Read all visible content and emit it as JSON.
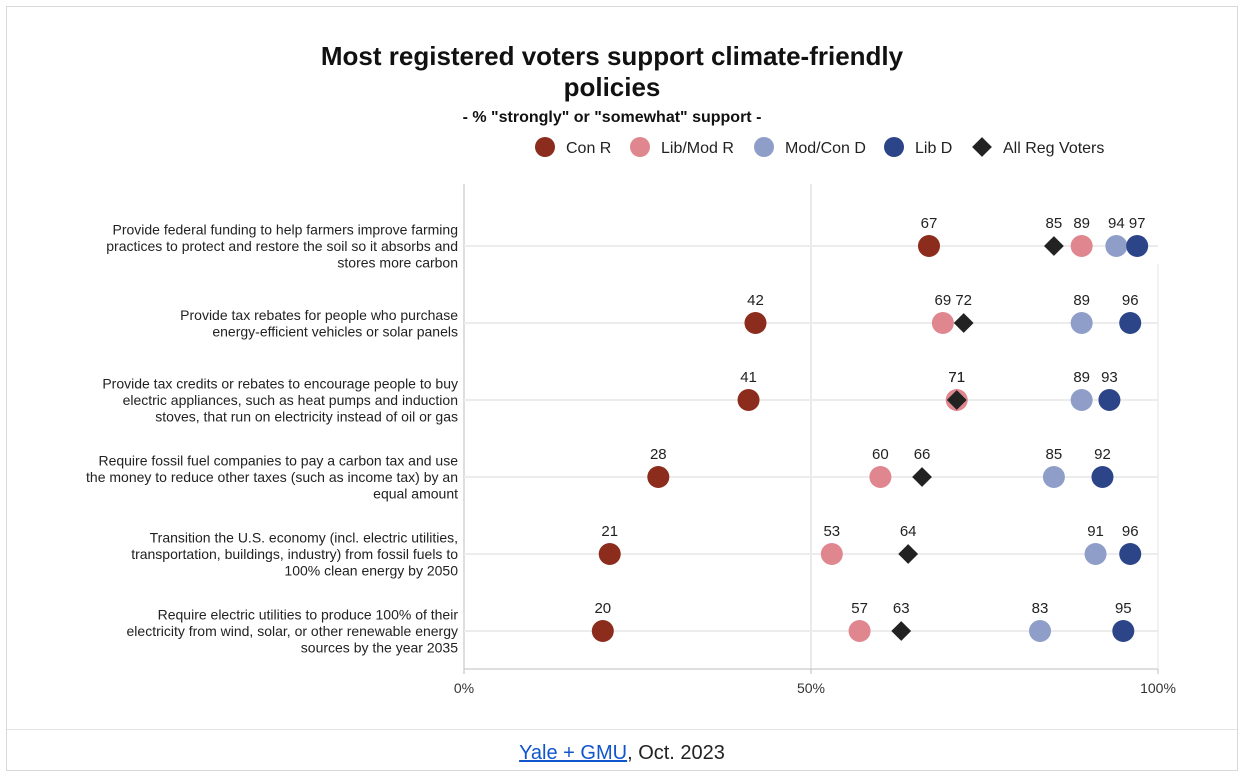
{
  "chart_data": {
    "type": "dot",
    "title_lines": [
      "Most registered voters support climate-friendly",
      "policies"
    ],
    "subtitle": "- % \"strongly\" or \"somewhat\" support -",
    "xlim": [
      0,
      100
    ],
    "x_ticks": [
      {
        "value": 0,
        "label": "0%"
      },
      {
        "value": 50,
        "label": "50%"
      },
      {
        "value": 100,
        "label": "100%"
      }
    ],
    "legend_position": "top",
    "series": [
      {
        "key": "con_r",
        "name": "Con R",
        "color": "#8b2c1c",
        "marker": "circle"
      },
      {
        "key": "lib_mod_r",
        "name": "Lib/Mod R",
        "color": "#e0868f",
        "marker": "circle"
      },
      {
        "key": "mod_con_d",
        "name": "Mod/Con D",
        "color": "#8e9ec8",
        "marker": "circle"
      },
      {
        "key": "lib_d",
        "name": "Lib D",
        "color": "#2c4589",
        "marker": "circle"
      },
      {
        "key": "all",
        "name": "All Reg Voters",
        "color": "#222222",
        "marker": "diamond"
      }
    ],
    "categories": [
      {
        "label_lines": [
          "Provide federal funding to help farmers improve farming",
          "practices to protect and restore the soil so it absorbs and",
          "stores more carbon"
        ],
        "values": {
          "con_r": 67,
          "lib_mod_r": 89,
          "mod_con_d": 94,
          "lib_d": 97,
          "all": 85
        }
      },
      {
        "label_lines": [
          "Provide tax rebates for people who purchase",
          "energy-efficient vehicles or solar panels"
        ],
        "values": {
          "con_r": 42,
          "lib_mod_r": 69,
          "mod_con_d": 89,
          "lib_d": 96,
          "all": 72
        }
      },
      {
        "label_lines": [
          "Provide tax credits or rebates to encourage people to buy",
          "electric appliances, such as heat pumps and induction",
          "stoves, that run on electricity instead of oil or gas"
        ],
        "values": {
          "con_r": 41,
          "lib_mod_r": 71,
          "mod_con_d": 89,
          "lib_d": 93,
          "all": 71
        }
      },
      {
        "label_lines": [
          "Require fossil fuel companies to pay a carbon tax and use",
          "the money to reduce other taxes (such as income tax) by an",
          "equal amount"
        ],
        "values": {
          "con_r": 28,
          "lib_mod_r": 60,
          "mod_con_d": 85,
          "lib_d": 92,
          "all": 66
        }
      },
      {
        "label_lines": [
          "Transition the U.S. economy (incl. electric utilities,",
          "transportation, buildings, industry) from fossil fuels to",
          "100% clean energy by 2050"
        ],
        "values": {
          "con_r": 21,
          "lib_mod_r": 53,
          "mod_con_d": 91,
          "lib_d": 96,
          "all": 64
        }
      },
      {
        "label_lines": [
          "Require electric utilities to produce 100% of their",
          "electricity from wind, solar, or other renewable energy",
          "sources by the year 2035"
        ],
        "values": {
          "con_r": 20,
          "lib_mod_r": 57,
          "mod_con_d": 83,
          "lib_d": 95,
          "all": 63
        }
      }
    ],
    "data_label_rules": [
      {
        "row": 0,
        "labels": [
          "con_r",
          "all",
          "lib_mod_r",
          "mod_con_d",
          "lib_d"
        ]
      },
      {
        "row": 1,
        "labels": [
          "con_r",
          "lib_mod_r",
          "all",
          "mod_con_d",
          "lib_d"
        ]
      },
      {
        "row": 2,
        "labels": [
          "con_r",
          "lib_mod_r",
          "all",
          "mod_con_d",
          "lib_d"
        ]
      },
      {
        "row": 3,
        "labels": [
          "con_r",
          "lib_mod_r",
          "all",
          "mod_con_d",
          "lib_d"
        ]
      },
      {
        "row": 4,
        "labels": [
          "con_r",
          "lib_mod_r",
          "all",
          "mod_con_d",
          "lib_d"
        ]
      },
      {
        "row": 5,
        "labels": [
          "con_r",
          "lib_mod_r",
          "all",
          "mod_con_d",
          "lib_d"
        ]
      }
    ]
  },
  "footer": {
    "source_link_text": "Yale + GMU",
    "source_suffix": ", Oct. 2023"
  }
}
